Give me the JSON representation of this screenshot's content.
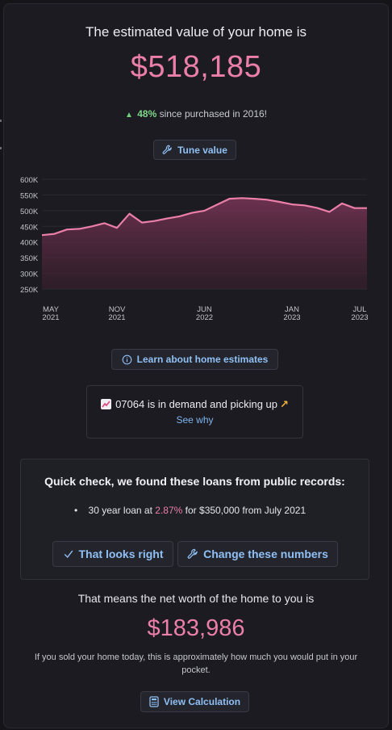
{
  "estimate": {
    "title": "The estimated value of your home is",
    "value": "$518,185",
    "change_pct": "48%",
    "change_text": "since purchased in 2016!",
    "up_icon": "triangle-up-icon"
  },
  "buttons": {
    "tune_value": "Tune value",
    "learn_estimates": "Learn about home estimates",
    "looks_right": "That looks right",
    "change_numbers": "Change these numbers",
    "view_calculation": "View Calculation"
  },
  "chart_data": {
    "type": "area",
    "y_ticks": [
      "600K",
      "550K",
      "500K",
      "450K",
      "400K",
      "350K",
      "300K",
      "250K"
    ],
    "ylim": [
      250000,
      600000
    ],
    "x_ticks": [
      {
        "month": "MAY",
        "year": "2021"
      },
      {
        "month": "NOV",
        "year": "2021"
      },
      {
        "month": "JUN",
        "year": "2022"
      },
      {
        "month": "JAN",
        "year": "2023"
      },
      {
        "month": "JUL",
        "year": "2023"
      }
    ],
    "x": [
      "2021-05",
      "2021-06",
      "2021-07",
      "2021-08",
      "2021-09",
      "2021-10",
      "2021-11",
      "2021-12",
      "2022-01",
      "2022-02",
      "2022-03",
      "2022-04",
      "2022-05",
      "2022-06",
      "2022-07",
      "2022-08",
      "2022-09",
      "2022-10",
      "2022-11",
      "2022-12",
      "2023-01",
      "2023-02",
      "2023-03",
      "2023-04",
      "2023-05",
      "2023-06",
      "2023-07"
    ],
    "values": [
      422000,
      426000,
      440000,
      442000,
      450000,
      460000,
      445000,
      490000,
      462000,
      467000,
      475000,
      482000,
      493000,
      500000,
      519000,
      538000,
      540000,
      538000,
      535000,
      528000,
      520000,
      517000,
      509000,
      496000,
      523000,
      508000,
      508000
    ],
    "line_color": "#ec7fa9",
    "grid": true
  },
  "demand": {
    "zip_text": "07064 is in demand and picking up",
    "chart_emoji": "chart-increasing-icon",
    "arrow_emoji": "↗",
    "see_why": "See why"
  },
  "loans": {
    "title": "Quick check, we found these loans from public records:",
    "items": [
      {
        "prefix": "30 year loan at",
        "rate": "2.87%",
        "mid": "for",
        "amount": "$350,000",
        "suffix": "from July 2021"
      }
    ]
  },
  "net_worth": {
    "title": "That means the net worth of the home to you is",
    "value": "$183,986",
    "note": "If you sold your home today, this is approximately how much you would put in your pocket."
  },
  "colors": {
    "accent_pink": "#ec7fa9",
    "link_blue": "#8fc0f5",
    "up_green": "#6cd07a",
    "background": "#1b1b21"
  }
}
